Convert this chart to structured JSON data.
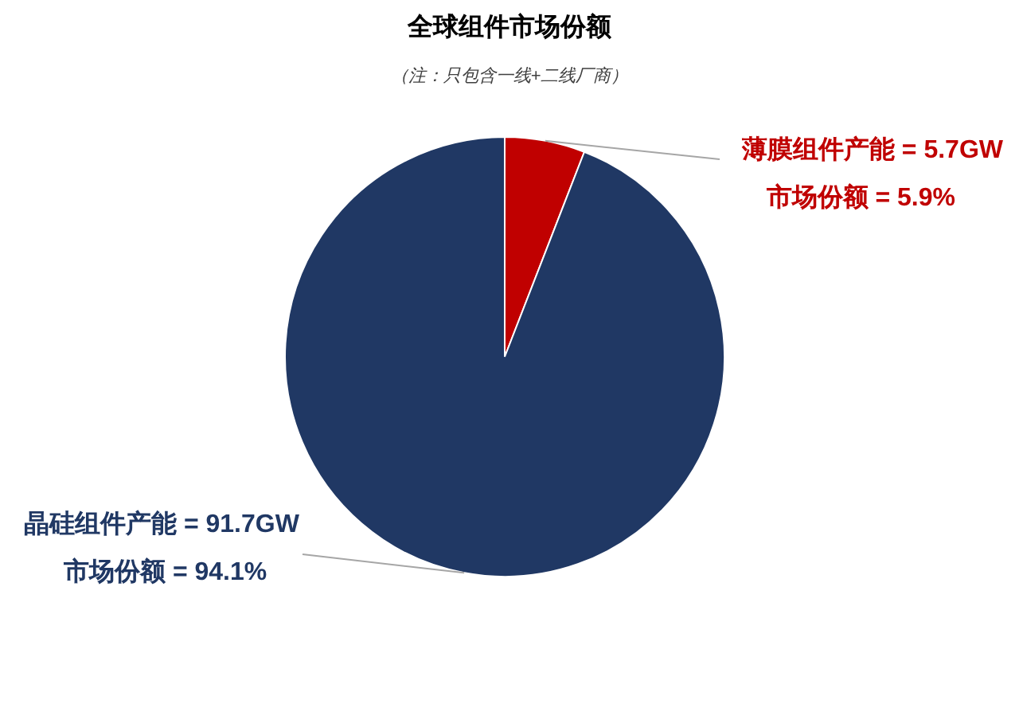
{
  "chart_data": {
    "type": "pie",
    "title": "全球组件市场份额",
    "subtitle": "（注：只包含一线+二线厂商）",
    "categories": [
      "薄膜组件产能 = 5.7GW",
      "晶硅组件产能 = 91.7GW"
    ],
    "values": [
      5.9,
      94.1
    ],
    "colors": [
      "#c00000",
      "#203864"
    ],
    "value_labels": [
      "市场份额 = 5.9%",
      "市场份额 = 94.1%"
    ],
    "legend": false
  }
}
